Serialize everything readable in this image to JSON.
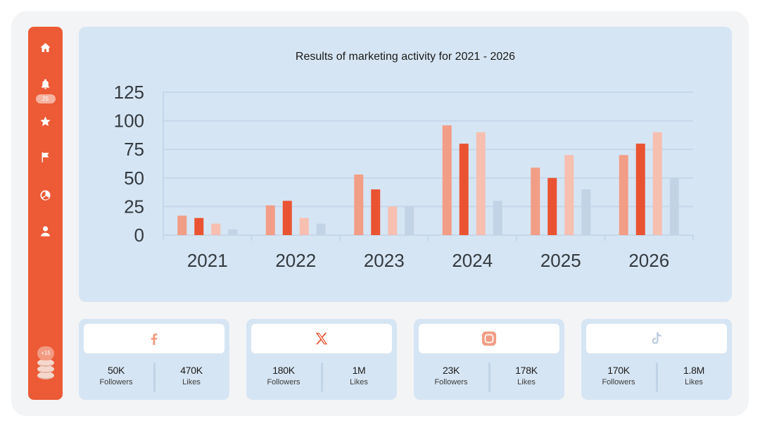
{
  "sidebar": {
    "items": [
      {
        "icon": "home-icon"
      },
      {
        "icon": "bell-icon",
        "badge": "25"
      },
      {
        "icon": "star-icon"
      },
      {
        "icon": "flag-icon"
      },
      {
        "icon": "pie-chart-icon"
      },
      {
        "icon": "user-icon"
      }
    ],
    "stack_badge": "+15"
  },
  "chart_data": {
    "type": "bar",
    "title": "Results of marketing activity for 2021 - 2026",
    "categories": [
      "2021",
      "2022",
      "2023",
      "2024",
      "2025",
      "2026"
    ],
    "series": [
      {
        "values": [
          17,
          26,
          53,
          96,
          59,
          70
        ],
        "color": "#f29d86"
      },
      {
        "values": [
          15,
          30,
          40,
          80,
          50,
          80
        ],
        "color": "#ea5332"
      },
      {
        "values": [
          10,
          15,
          25,
          90,
          70,
          90
        ],
        "color": "#f7bfb0"
      },
      {
        "values": [
          5,
          10,
          25,
          30,
          40,
          50
        ],
        "color": "#c3d3e6"
      }
    ],
    "yticks": [
      "0",
      "25",
      "50",
      "75",
      "100",
      "125"
    ],
    "ylim": [
      0,
      125
    ],
    "grid": true
  },
  "socials": [
    {
      "icon": "facebook-icon",
      "followers": "50K",
      "followers_label": "Followers",
      "likes": "470K",
      "likes_label": "Likes",
      "color": "#f29d86"
    },
    {
      "icon": "x-icon",
      "followers": "180K",
      "followers_label": "Followers",
      "likes": "1M",
      "likes_label": "Likes",
      "color": "#ea5332"
    },
    {
      "icon": "instagram-icon",
      "followers": "23K",
      "followers_label": "Followers",
      "likes": "178K",
      "likes_label": "Likes",
      "color": "#f29d86"
    },
    {
      "icon": "tiktok-icon",
      "followers": "170K",
      "followers_label": "Followers",
      "likes": "1.8M",
      "likes_label": "Likes",
      "color": "#b9c9de"
    }
  ]
}
